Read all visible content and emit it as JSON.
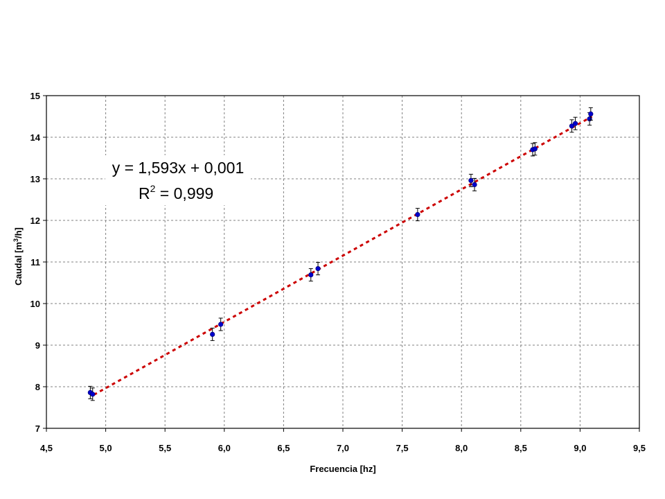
{
  "chart_data": {
    "type": "scatter",
    "xlabel": "Frecuencia [hz]",
    "ylabel_main": "Caudal [m",
    "ylabel_sup": "3",
    "ylabel_tail": "/h]",
    "xlim": [
      4.5,
      9.5
    ],
    "ylim": [
      7,
      15
    ],
    "xticks": [
      "4,5",
      "5,0",
      "5,5",
      "6,0",
      "6,5",
      "7,0",
      "7,5",
      "8,0",
      "8,5",
      "9,0",
      "9,5"
    ],
    "xtick_values": [
      4.5,
      5.0,
      5.5,
      6.0,
      6.5,
      7.0,
      7.5,
      8.0,
      8.5,
      9.0,
      9.5
    ],
    "yticks": [
      "7",
      "8",
      "9",
      "10",
      "11",
      "12",
      "13",
      "14",
      "15"
    ],
    "ytick_values": [
      7,
      8,
      9,
      10,
      11,
      12,
      13,
      14,
      15
    ],
    "grid": true,
    "points": [
      {
        "x": 4.87,
        "y": 7.86,
        "err": 0.15
      },
      {
        "x": 4.89,
        "y": 7.82,
        "err": 0.15
      },
      {
        "x": 5.9,
        "y": 9.26,
        "err": 0.15
      },
      {
        "x": 5.97,
        "y": 9.5,
        "err": 0.15
      },
      {
        "x": 6.73,
        "y": 10.69,
        "err": 0.15
      },
      {
        "x": 6.79,
        "y": 10.84,
        "err": 0.15
      },
      {
        "x": 7.63,
        "y": 12.14,
        "err": 0.15
      },
      {
        "x": 8.08,
        "y": 12.96,
        "err": 0.15
      },
      {
        "x": 8.11,
        "y": 12.86,
        "err": 0.15
      },
      {
        "x": 8.6,
        "y": 13.7,
        "err": 0.15
      },
      {
        "x": 8.62,
        "y": 13.72,
        "err": 0.15
      },
      {
        "x": 8.93,
        "y": 14.27,
        "err": 0.15
      },
      {
        "x": 8.96,
        "y": 14.33,
        "err": 0.15
      },
      {
        "x": 9.08,
        "y": 14.44,
        "err": 0.15
      },
      {
        "x": 9.09,
        "y": 14.56,
        "err": 0.15
      }
    ],
    "trendline": {
      "slope": 1.593,
      "intercept": 0.001,
      "x_range": [
        4.9,
        9.1
      ]
    },
    "annotation": {
      "line1": "y = 1,593x + 0,001",
      "line2_main": "R",
      "line2_sup": "2",
      "line2_tail": " = 0,999"
    },
    "colors": {
      "marker": "#0000cc",
      "trendline": "#cc0000",
      "errorbar": "#000000",
      "grid": "#808080"
    }
  }
}
